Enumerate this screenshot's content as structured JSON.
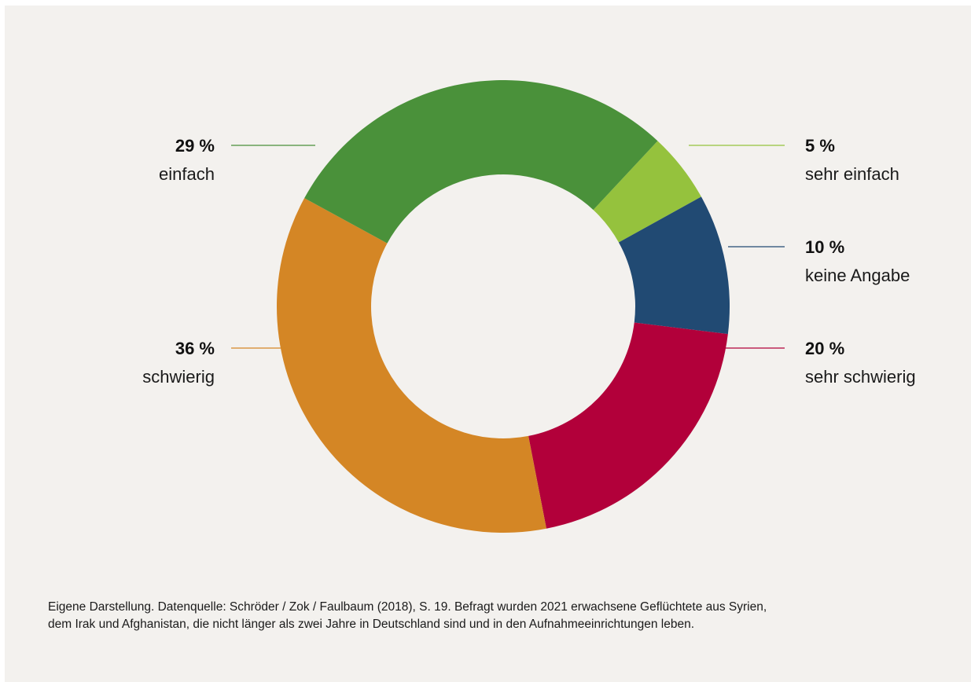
{
  "chart_data": {
    "type": "pie",
    "subtype": "donut",
    "slices": [
      {
        "label": "sehr einfach",
        "value": 5,
        "pct_text": "5 %",
        "color": "#95c23d"
      },
      {
        "label": "keine Angabe",
        "value": 10,
        "pct_text": "10 %",
        "color": "#214a73"
      },
      {
        "label": "sehr schwierig",
        "value": 20,
        "pct_text": "20 %",
        "color": "#b2003a"
      },
      {
        "label": "schwierig",
        "value": 36,
        "pct_text": "36 %",
        "color": "#d48625"
      },
      {
        "label": "einfach",
        "value": 29,
        "pct_text": "29 %",
        "color": "#4a913a"
      }
    ]
  },
  "footnote": {
    "line1": "Eigene Darstellung. Datenquelle: Schröder / Zok / Faulbaum (2018), S. 19. Befragt wurden 2021 erwachsene Geflüchtete aus Syrien,",
    "line2": "dem Irak und Afghanistan, die nicht länger als zwei Jahre in Deutschland sind und in den Aufnahmeeinrichtungen leben."
  }
}
